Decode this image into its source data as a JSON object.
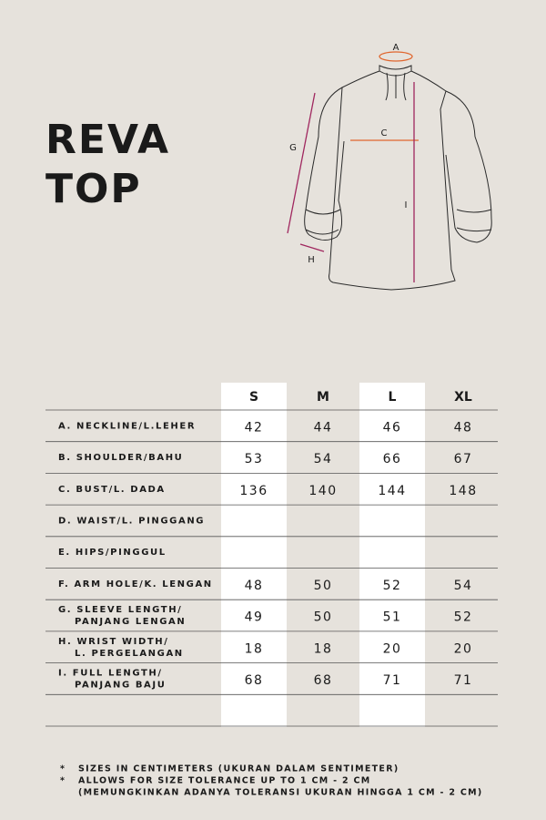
{
  "title": [
    "REVA",
    "TOP"
  ],
  "diagram": {
    "labels": [
      "A",
      "C",
      "G",
      "I",
      "H"
    ]
  },
  "table": {
    "headers": [
      "S",
      "M",
      "L",
      "XL"
    ],
    "rows": [
      {
        "label": [
          "A.  NECKLINE/L.LEHER"
        ],
        "values": [
          42,
          44,
          46,
          48
        ]
      },
      {
        "label": [
          "B.  SHOULDER/BAHU"
        ],
        "values": [
          53,
          54,
          66,
          67
        ]
      },
      {
        "label": [
          "C.  BUST/L. DADA"
        ],
        "values": [
          136,
          140,
          144,
          148
        ]
      },
      {
        "label": [
          "D.  WAIST/L. PINGGANG"
        ]
      },
      {
        "label": [
          "E.  HIPS/PINGGUL"
        ]
      },
      {
        "label": [
          "F.  ARM HOLE/K. LENGAN"
        ],
        "values": [
          48,
          50,
          52,
          54
        ]
      },
      {
        "label": [
          "G.  SLEEVE LENGTH/",
          "PANJANG LENGAN"
        ],
        "values": [
          49,
          50,
          51,
          52
        ]
      },
      {
        "label": [
          "H.  WRIST WIDTH/",
          "L. PERGELANGAN"
        ],
        "values": [
          18,
          18,
          20,
          20
        ]
      },
      {
        "label": [
          "I.   FULL LENGTH/",
          "PANJANG BAJU"
        ],
        "values": [
          68,
          68,
          71,
          71
        ]
      }
    ]
  },
  "notes": [
    {
      "marker": "*",
      "text": "SIZES IN CENTIMETERS  (UKURAN DALAM SENTIMETER)"
    },
    {
      "marker": "*",
      "text": "ALLOWS FOR SIZE TOLERANCE UP TO 1 CM - 2 CM"
    },
    {
      "marker": "",
      "text": "(MEMUNGKINKAN ADANYA TOLERANSI UKURAN HINGGA 1 CM - 2 CM)"
    }
  ]
}
